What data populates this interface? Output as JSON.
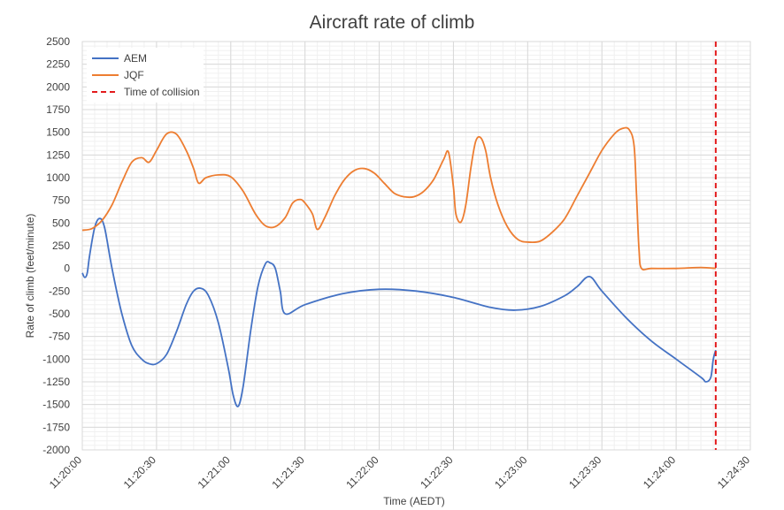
{
  "chart_data": {
    "type": "line",
    "title": "Aircraft rate of climb",
    "xlabel": "Time (AEDT)",
    "ylabel": "Rate of climb (feet/minute)",
    "ylim": [
      -2000,
      2500
    ],
    "y_major_step": 250,
    "xlim": [
      "11:20:00",
      "11:24:30"
    ],
    "x_ticks": [
      "11:20:00",
      "11:20:30",
      "11:21:00",
      "11:21:30",
      "11:22:00",
      "11:22:30",
      "11:23:00",
      "11:23:30",
      "11:24:00",
      "11:24:30"
    ],
    "grid": true,
    "legend_position": "top-left",
    "series": [
      {
        "name": "AEM",
        "color": "#4472C4",
        "points": [
          [
            "11:20:00",
            -50
          ],
          [
            "11:20:01",
            -100
          ],
          [
            "11:20:02",
            -50
          ],
          [
            "11:20:03",
            150
          ],
          [
            "11:20:05",
            450
          ],
          [
            "11:20:07",
            550
          ],
          [
            "11:20:09",
            450
          ],
          [
            "11:20:12",
            0
          ],
          [
            "11:20:16",
            -500
          ],
          [
            "11:20:20",
            -850
          ],
          [
            "11:20:24",
            -1000
          ],
          [
            "11:20:27",
            -1050
          ],
          [
            "11:20:30",
            -1050
          ],
          [
            "11:20:34",
            -950
          ],
          [
            "11:20:38",
            -700
          ],
          [
            "11:20:42",
            -400
          ],
          [
            "11:20:45",
            -250
          ],
          [
            "11:20:48",
            -220
          ],
          [
            "11:20:51",
            -300
          ],
          [
            "11:20:55",
            -600
          ],
          [
            "11:20:59",
            -1100
          ],
          [
            "11:21:01",
            -1400
          ],
          [
            "11:21:03",
            -1520
          ],
          [
            "11:21:05",
            -1300
          ],
          [
            "11:21:08",
            -700
          ],
          [
            "11:21:11",
            -200
          ],
          [
            "11:21:14",
            50
          ],
          [
            "11:21:16",
            60
          ],
          [
            "11:21:18",
            0
          ],
          [
            "11:21:20",
            -250
          ],
          [
            "11:21:22",
            -500
          ],
          [
            "11:21:30",
            -400
          ],
          [
            "11:21:45",
            -280
          ],
          [
            "11:22:00",
            -230
          ],
          [
            "11:22:15",
            -250
          ],
          [
            "11:22:30",
            -320
          ],
          [
            "11:22:45",
            -430
          ],
          [
            "11:22:55",
            -460
          ],
          [
            "11:23:05",
            -420
          ],
          [
            "11:23:15",
            -300
          ],
          [
            "11:23:20",
            -200
          ],
          [
            "11:23:25",
            -90
          ],
          [
            "11:23:30",
            -250
          ],
          [
            "11:23:40",
            -550
          ],
          [
            "11:23:50",
            -800
          ],
          [
            "11:24:00",
            -1000
          ],
          [
            "11:24:10",
            -1200
          ],
          [
            "11:24:12",
            -1250
          ],
          [
            "11:24:14",
            -1200
          ],
          [
            "11:24:15",
            -1000
          ],
          [
            "11:24:16",
            -900
          ]
        ]
      },
      {
        "name": "JQF",
        "color": "#ED7D31",
        "points": [
          [
            "11:20:00",
            420
          ],
          [
            "11:20:04",
            440
          ],
          [
            "11:20:08",
            530
          ],
          [
            "11:20:12",
            700
          ],
          [
            "11:20:16",
            950
          ],
          [
            "11:20:20",
            1170
          ],
          [
            "11:20:24",
            1220
          ],
          [
            "11:20:27",
            1170
          ],
          [
            "11:20:30",
            1300
          ],
          [
            "11:20:34",
            1480
          ],
          [
            "11:20:38",
            1480
          ],
          [
            "11:20:42",
            1300
          ],
          [
            "11:20:45",
            1100
          ],
          [
            "11:20:47",
            940
          ],
          [
            "11:20:50",
            1000
          ],
          [
            "11:20:55",
            1030
          ],
          [
            "11:21:00",
            1010
          ],
          [
            "11:21:05",
            850
          ],
          [
            "11:21:10",
            600
          ],
          [
            "11:21:14",
            470
          ],
          [
            "11:21:18",
            460
          ],
          [
            "11:21:22",
            560
          ],
          [
            "11:21:25",
            720
          ],
          [
            "11:21:28",
            760
          ],
          [
            "11:21:30",
            720
          ],
          [
            "11:21:33",
            600
          ],
          [
            "11:21:35",
            430
          ],
          [
            "11:21:38",
            560
          ],
          [
            "11:21:42",
            800
          ],
          [
            "11:21:46",
            980
          ],
          [
            "11:21:50",
            1080
          ],
          [
            "11:21:54",
            1100
          ],
          [
            "11:21:58",
            1050
          ],
          [
            "11:22:02",
            940
          ],
          [
            "11:22:06",
            830
          ],
          [
            "11:22:10",
            790
          ],
          [
            "11:22:14",
            790
          ],
          [
            "11:22:18",
            850
          ],
          [
            "11:22:22",
            980
          ],
          [
            "11:22:26",
            1200
          ],
          [
            "11:22:28",
            1280
          ],
          [
            "11:22:30",
            900
          ],
          [
            "11:22:31",
            600
          ],
          [
            "11:22:33",
            510
          ],
          [
            "11:22:35",
            700
          ],
          [
            "11:22:37",
            1100
          ],
          [
            "11:22:39",
            1400
          ],
          [
            "11:22:41",
            1440
          ],
          [
            "11:22:43",
            1300
          ],
          [
            "11:22:45",
            1000
          ],
          [
            "11:22:48",
            700
          ],
          [
            "11:22:52",
            450
          ],
          [
            "11:22:56",
            320
          ],
          [
            "11:23:00",
            290
          ],
          [
            "11:23:05",
            300
          ],
          [
            "11:23:10",
            400
          ],
          [
            "11:23:15",
            550
          ],
          [
            "11:23:20",
            800
          ],
          [
            "11:23:25",
            1050
          ],
          [
            "11:23:30",
            1300
          ],
          [
            "11:23:35",
            1480
          ],
          [
            "11:23:38",
            1540
          ],
          [
            "11:23:41",
            1530
          ],
          [
            "11:23:43",
            1350
          ],
          [
            "11:23:44",
            800
          ],
          [
            "11:23:45",
            200
          ],
          [
            "11:23:46",
            0
          ],
          [
            "11:23:50",
            0
          ],
          [
            "11:24:00",
            0
          ],
          [
            "11:24:10",
            10
          ],
          [
            "11:24:16",
            0
          ]
        ]
      }
    ],
    "annotations": [
      {
        "name": "Time of collision",
        "type": "vertical-line",
        "x": "11:24:16",
        "color": "#E31A1C",
        "style": "dashed"
      }
    ]
  }
}
